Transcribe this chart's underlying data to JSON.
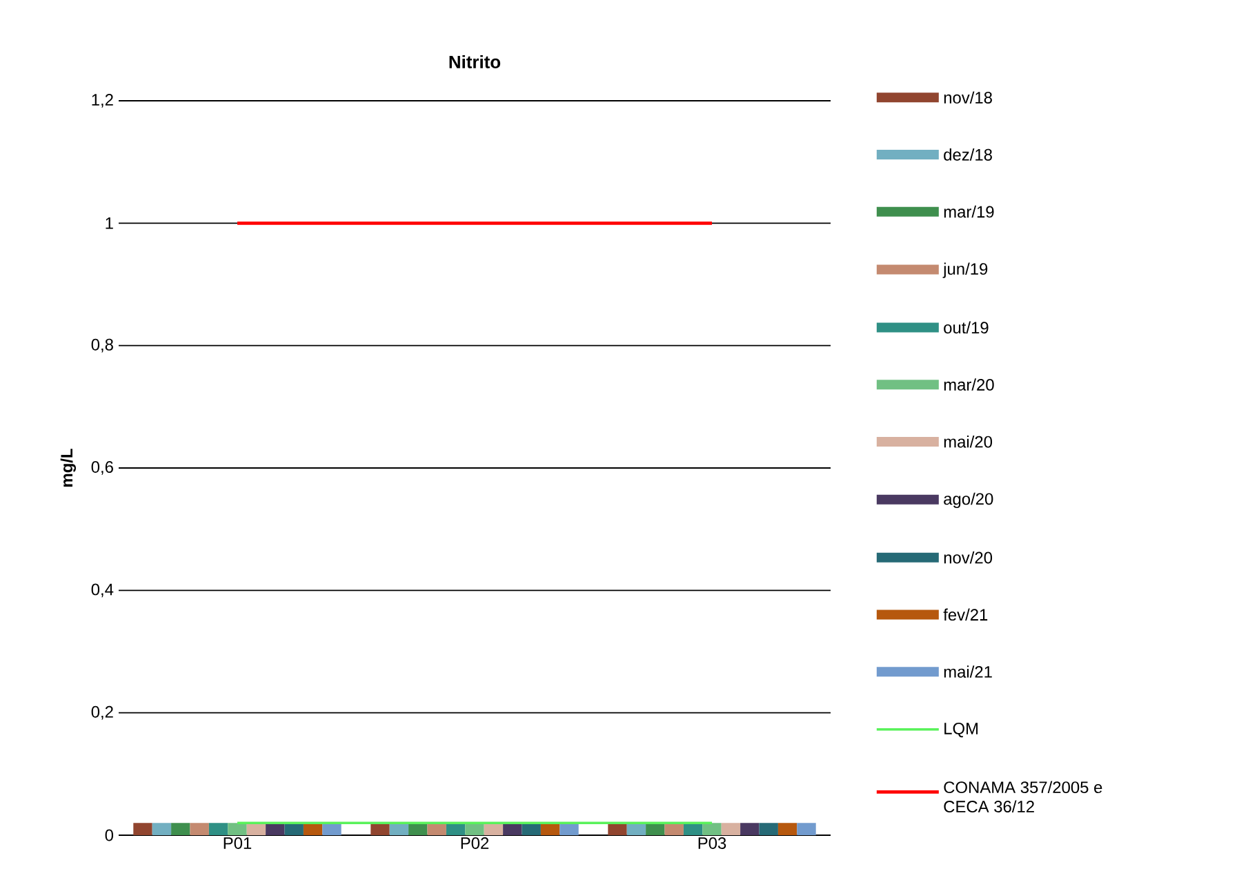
{
  "chart_data": {
    "type": "bar",
    "title": "Nitrito",
    "ylabel": "mg/L",
    "categories": [
      "P01",
      "P02",
      "P03"
    ],
    "series": [
      {
        "name": "nov/18",
        "color": "#91452f",
        "values": [
          0.02,
          0.02,
          0.02
        ]
      },
      {
        "name": "dez/18",
        "color": "#72afc1",
        "values": [
          0.02,
          0.02,
          0.02
        ]
      },
      {
        "name": "mar/19",
        "color": "#3f8f4e",
        "values": [
          0.02,
          0.02,
          0.02
        ]
      },
      {
        "name": "jun/19",
        "color": "#c48a70",
        "values": [
          0.02,
          0.02,
          0.02
        ]
      },
      {
        "name": "out/19",
        "color": "#2f9085",
        "values": [
          0.02,
          0.02,
          0.02
        ]
      },
      {
        "name": "mar/20",
        "color": "#71c083",
        "values": [
          0.02,
          0.02,
          0.02
        ]
      },
      {
        "name": "mai/20",
        "color": "#d8b1a0",
        "values": [
          0.02,
          0.02,
          0.02
        ]
      },
      {
        "name": "ago/20",
        "color": "#4a3961",
        "values": [
          0.02,
          0.02,
          0.02
        ]
      },
      {
        "name": "nov/20",
        "color": "#266a76",
        "values": [
          0.02,
          0.02,
          0.02
        ]
      },
      {
        "name": "fev/21",
        "color": "#b6580e",
        "values": [
          0.02,
          0.02,
          0.02
        ]
      },
      {
        "name": "mai/21",
        "color": "#729bce",
        "values": [
          0.02,
          0.02,
          0.02
        ]
      },
      {
        "name": "LQM",
        "color": "#59f25a",
        "type": "line",
        "values": [
          0.02,
          0.02,
          0.02
        ]
      },
      {
        "name": "CONAMA 357/2005 e CECA 36/12",
        "color": "#ff0000",
        "type": "line",
        "values": [
          1,
          1,
          1
        ]
      }
    ],
    "ylim": [
      0,
      1.2
    ],
    "yticks": [
      0,
      {
        "value": 0.2,
        "label": "0,2"
      },
      {
        "value": 0.4,
        "label": "0,4"
      },
      {
        "value": 0.6,
        "label": "0,6"
      },
      {
        "value": 0.8,
        "label": "0,8"
      },
      1,
      {
        "value": 1.2,
        "label": "1,2"
      }
    ],
    "grid": "y",
    "legend": "right",
    "marker": "none"
  }
}
